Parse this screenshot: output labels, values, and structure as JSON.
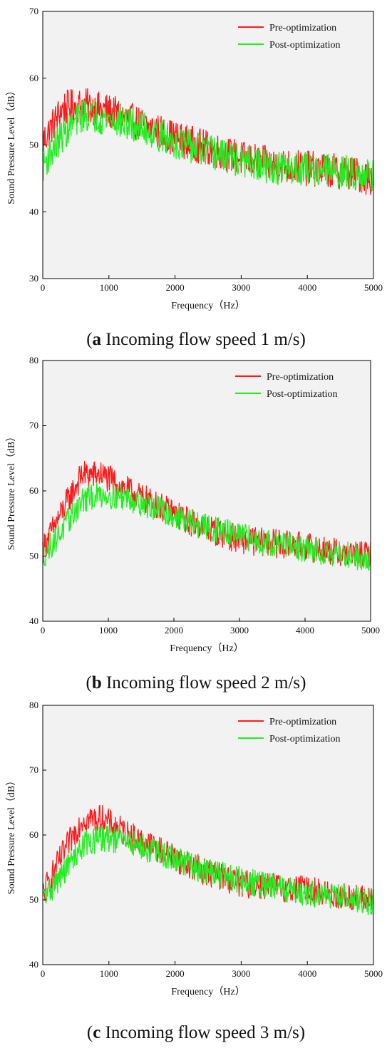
{
  "chart_data": [
    {
      "type": "line",
      "caption_letter": "a",
      "caption_text": " Incoming flow speed 1 m/s",
      "xlabel": "Frequency（Hz）",
      "ylabel": "Sound Pressure Level（dB）",
      "xlim": [
        0,
        5000
      ],
      "ylim": [
        30,
        70
      ],
      "xticks": [
        0,
        1000,
        2000,
        3000,
        4000,
        5000
      ],
      "yticks": [
        30,
        40,
        50,
        60,
        70
      ],
      "legend_position": "top-right",
      "series": [
        {
          "name": "Pre-optimization",
          "color": "#ff1a1a",
          "anchors": [
            [
              0,
              50.5
            ],
            [
              300,
              55.5
            ],
            [
              600,
              56
            ],
            [
              1000,
              55
            ],
            [
              1500,
              53
            ],
            [
              2000,
              51
            ],
            [
              2500,
              49.5
            ],
            [
              3000,
              48
            ],
            [
              3500,
              47
            ],
            [
              4000,
              46.5
            ],
            [
              4500,
              46
            ],
            [
              5000,
              45
            ]
          ],
          "amplitude": 2.3,
          "min": 41.7,
          "max": 60.3
        },
        {
          "name": "Post-optimization",
          "color": "#22ee22",
          "anchors": [
            [
              0,
              47
            ],
            [
              300,
              51.5
            ],
            [
              600,
              54.5
            ],
            [
              1000,
              54
            ],
            [
              1500,
              52.5
            ],
            [
              2000,
              50.5
            ],
            [
              2500,
              49
            ],
            [
              3000,
              47.5
            ],
            [
              3500,
              46.5
            ],
            [
              4000,
              46.5
            ],
            [
              4500,
              46
            ],
            [
              5000,
              45.5
            ]
          ],
          "amplitude": 2.2,
          "min": 42.0,
          "max": 56.8
        }
      ]
    },
    {
      "type": "line",
      "caption_letter": "b",
      "caption_text": " Incoming flow speed 2 m/s",
      "xlabel": "Frequency（Hz）",
      "ylabel": "Sound Pressure Level（dB）",
      "xlim": [
        0,
        5000
      ],
      "ylim": [
        40,
        80
      ],
      "xticks": [
        0,
        1000,
        2000,
        3000,
        4000,
        5000
      ],
      "yticks": [
        40,
        50,
        60,
        70,
        80
      ],
      "legend_position": "top-right",
      "series": [
        {
          "name": "Pre-optimization",
          "color": "#ff1a1a",
          "anchors": [
            [
              0,
              51
            ],
            [
              300,
              57
            ],
            [
              600,
              62.5
            ],
            [
              900,
              62.5
            ],
            [
              1300,
              60
            ],
            [
              1800,
              57.5
            ],
            [
              2300,
              55
            ],
            [
              3000,
              52.5
            ],
            [
              3500,
              52
            ],
            [
              4000,
              51.5
            ],
            [
              4500,
              50.5
            ],
            [
              5000,
              50
            ]
          ],
          "amplitude": 1.9,
          "min": 48.5,
          "max": 66
        },
        {
          "name": "Post-optimization",
          "color": "#22ee22",
          "anchors": [
            [
              0,
              50
            ],
            [
              300,
              54
            ],
            [
              600,
              58.5
            ],
            [
              900,
              59.5
            ],
            [
              1300,
              59
            ],
            [
              1800,
              57
            ],
            [
              2300,
              55
            ],
            [
              3000,
              53
            ],
            [
              3500,
              52
            ],
            [
              4000,
              51
            ],
            [
              4500,
              50.5
            ],
            [
              5000,
              49.5
            ]
          ],
          "amplitude": 1.8,
          "min": 46.3,
          "max": 62
        }
      ]
    },
    {
      "type": "line",
      "caption_letter": "c",
      "caption_text": " Incoming flow speed 3 m/s",
      "xlabel": "Frequency（Hz）",
      "ylabel": "Sound Pressure Level（dB）",
      "xlim": [
        0,
        5000
      ],
      "ylim": [
        40,
        80
      ],
      "xticks": [
        0,
        1000,
        2000,
        3000,
        4000,
        5000
      ],
      "yticks": [
        40,
        50,
        60,
        70,
        80
      ],
      "legend_position": "top-right",
      "series": [
        {
          "name": "Pre-optimization",
          "color": "#ff1a1a",
          "anchors": [
            [
              0,
              51
            ],
            [
              300,
              57
            ],
            [
              600,
              62.5
            ],
            [
              900,
              62.5
            ],
            [
              1300,
              60
            ],
            [
              1800,
              57.5
            ],
            [
              2300,
              55
            ],
            [
              3000,
              52.5
            ],
            [
              3500,
              52
            ],
            [
              4000,
              51.5
            ],
            [
              4500,
              50.5
            ],
            [
              5000,
              50
            ]
          ],
          "amplitude": 1.9,
          "min": 48.5,
          "max": 66
        },
        {
          "name": "Post-optimization",
          "color": "#22ee22",
          "anchors": [
            [
              0,
              50
            ],
            [
              300,
              54
            ],
            [
              600,
              58.5
            ],
            [
              900,
              59.5
            ],
            [
              1300,
              59
            ],
            [
              1800,
              57
            ],
            [
              2300,
              55
            ],
            [
              3000,
              53
            ],
            [
              3500,
              52
            ],
            [
              4000,
              51
            ],
            [
              4500,
              50.5
            ],
            [
              5000,
              49.5
            ]
          ],
          "amplitude": 1.8,
          "min": 46.3,
          "max": 62
        }
      ]
    }
  ]
}
